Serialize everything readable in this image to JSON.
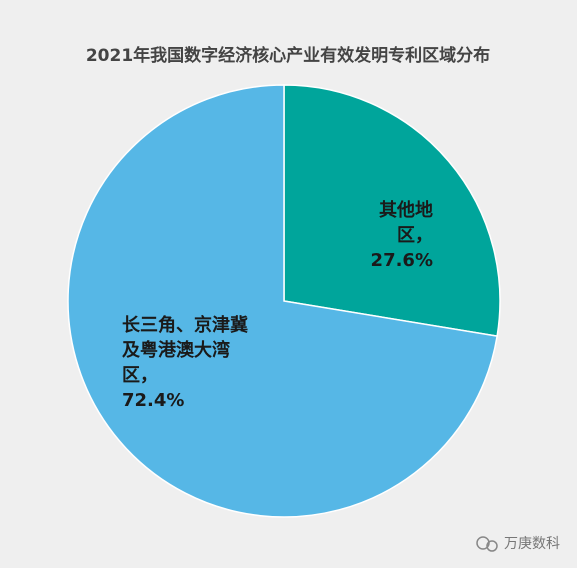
{
  "chart_data": {
    "type": "pie",
    "title": "2021年我国数字经济核心产业有效发明专利区域分布",
    "categories": [
      "其他地区，",
      "长三角、京津冀及粤港澳大湾区，"
    ],
    "values": [
      27.6,
      72.4
    ],
    "value_labels": [
      "27.6%",
      "72.4%"
    ],
    "colors": [
      "#00a59b",
      "#56b7e6"
    ]
  },
  "watermark": "万庚数科"
}
